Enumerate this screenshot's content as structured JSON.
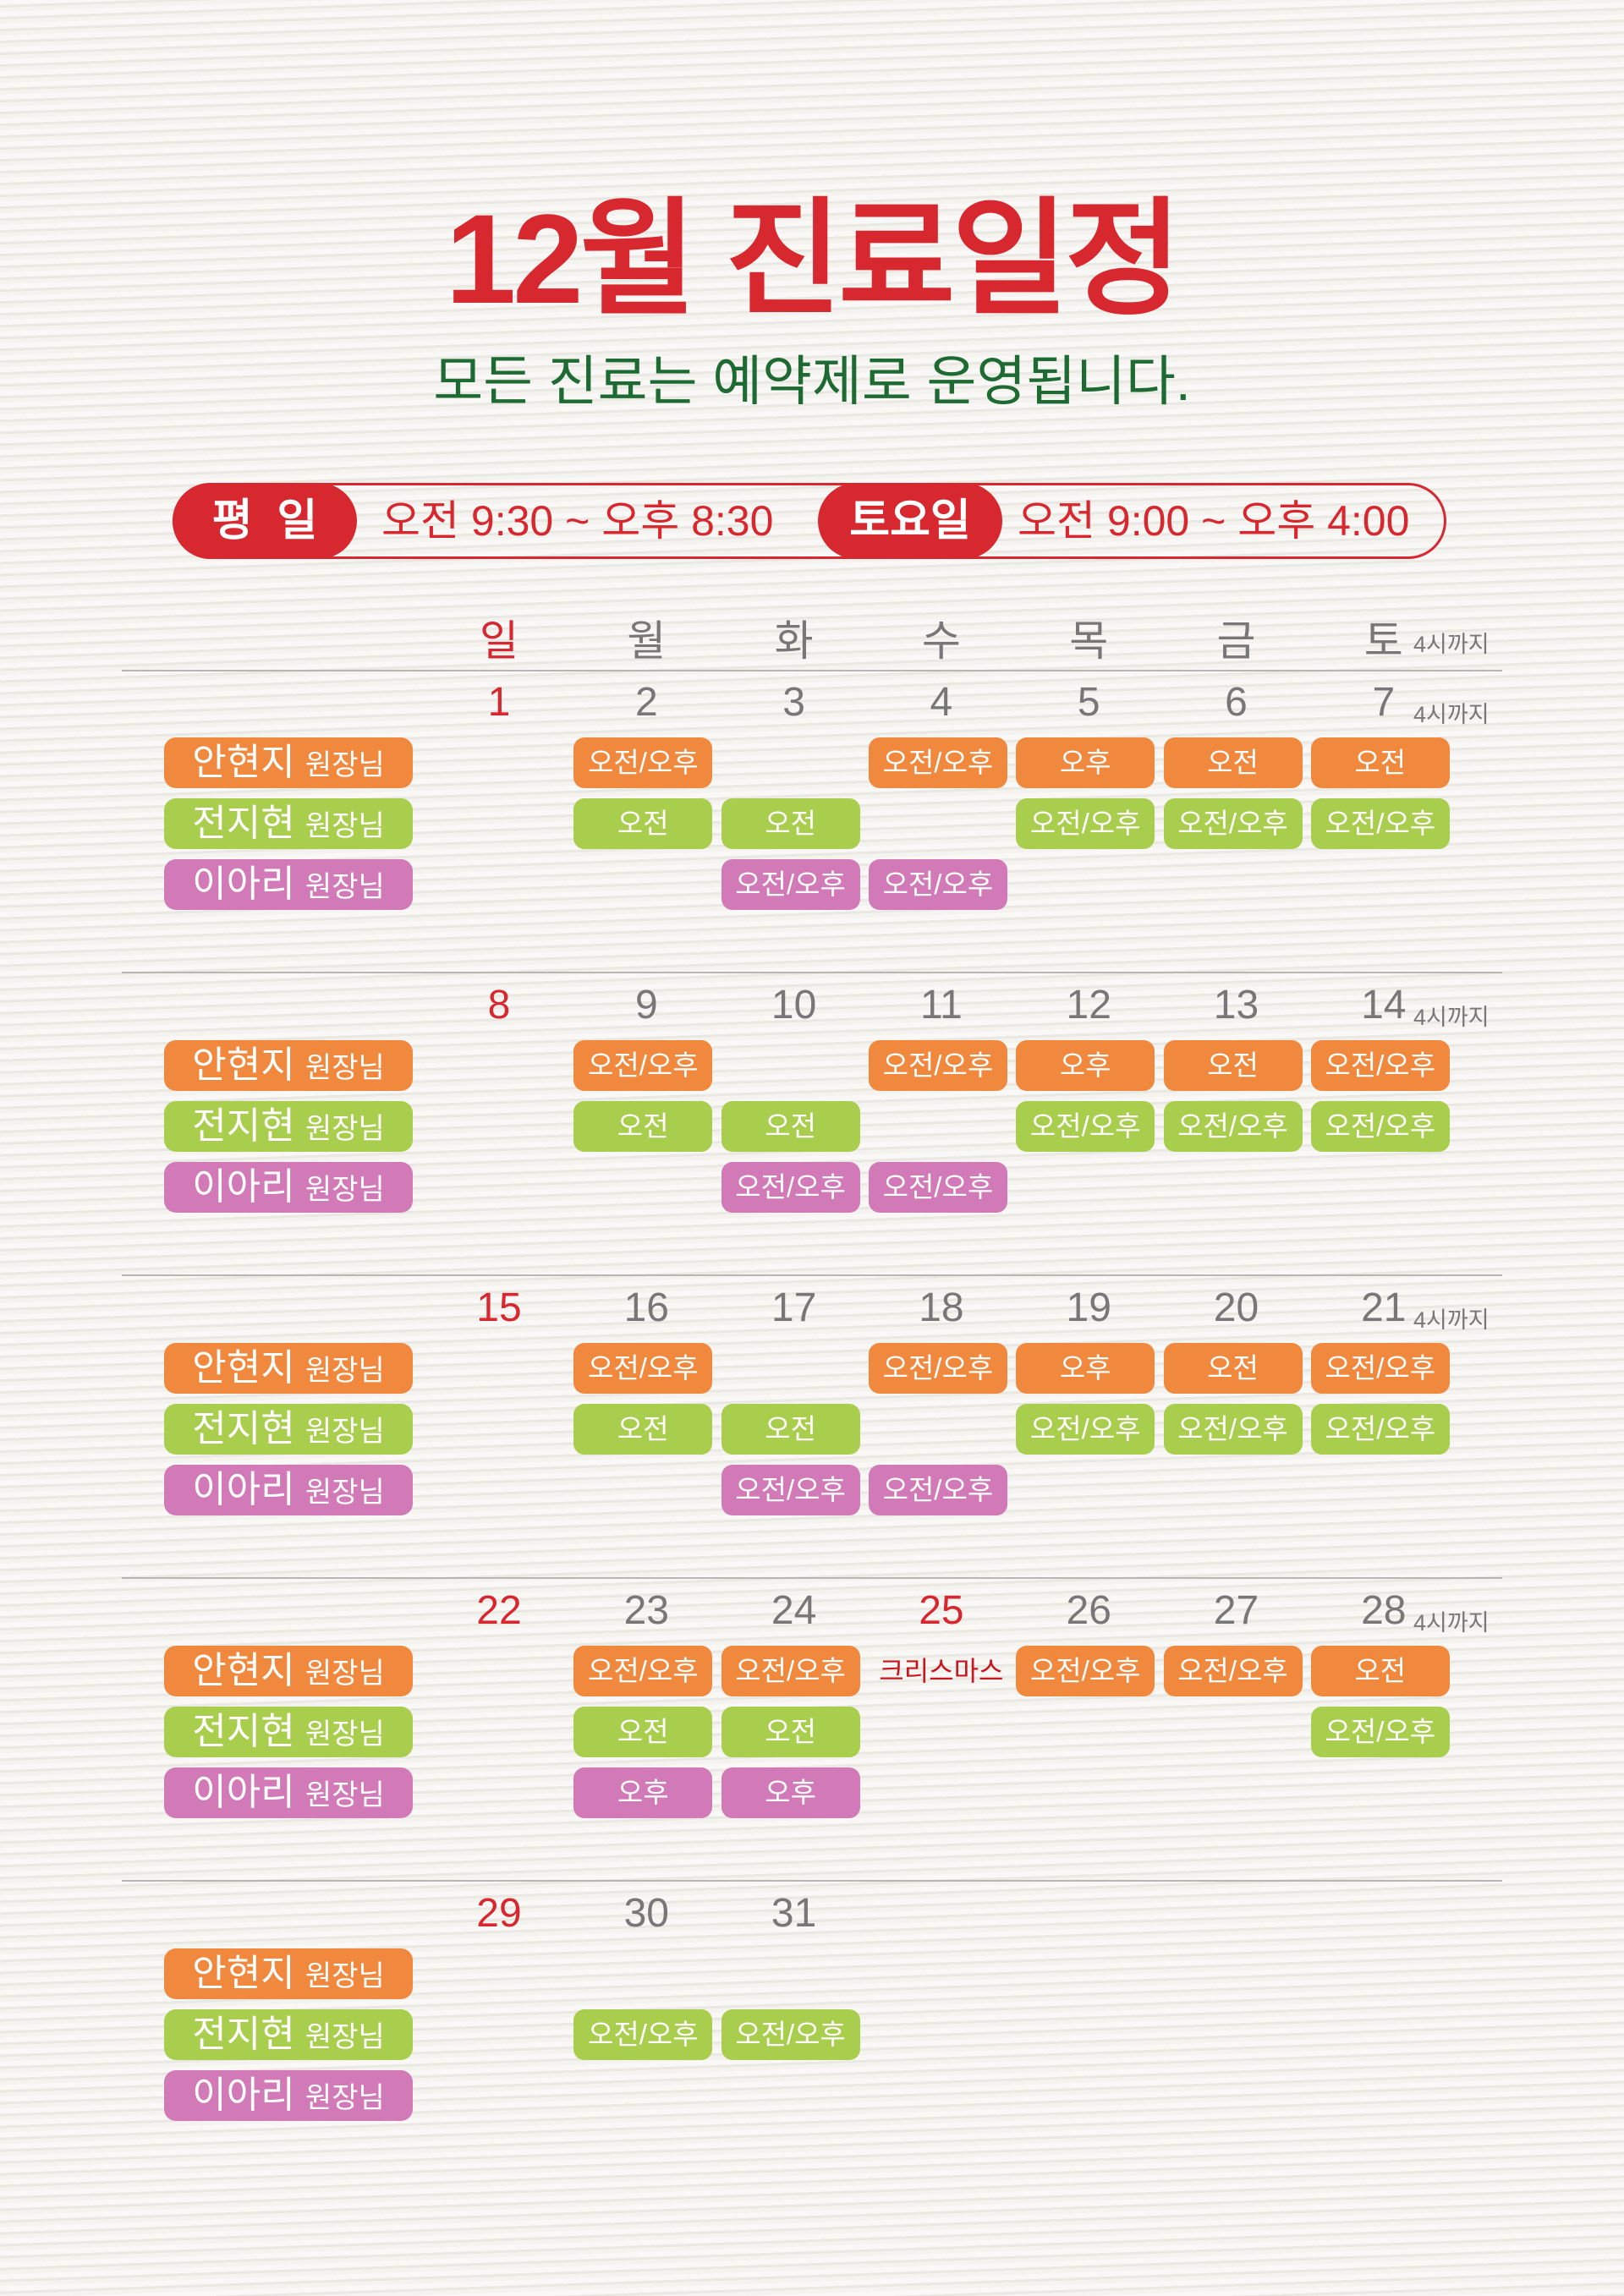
{
  "title": "12월 진료일정",
  "subtitle": "모든 진료는 예약제로 운영됩니다.",
  "hours": [
    {
      "label": "평  일",
      "time": "오전 9:30 ~ 오후 8:30"
    },
    {
      "label": "토요일",
      "time": "오전 9:00 ~ 오후 4:00"
    }
  ],
  "weekdays": [
    "일",
    "월",
    "화",
    "수",
    "목",
    "금",
    "토"
  ],
  "saturday_note": "4시까지",
  "doctors": [
    {
      "name": "안현지",
      "title": "원장님",
      "color": "#f0883e"
    },
    {
      "name": "전지현",
      "title": "원장님",
      "color": "#a9cd4c"
    },
    {
      "name": "이아리",
      "title": "원장님",
      "color": "#d27ab8"
    }
  ],
  "weeks": [
    {
      "dates": [
        1,
        2,
        3,
        4,
        5,
        6,
        7
      ],
      "schedule": [
        [
          null,
          "오전/오후",
          null,
          "오전/오후",
          "오후",
          "오전",
          "오전"
        ],
        [
          null,
          "오전",
          "오전",
          null,
          "오전/오후",
          "오전/오후",
          "오전/오후"
        ],
        [
          null,
          null,
          "오전/오후",
          "오전/오후",
          null,
          null,
          null
        ]
      ]
    },
    {
      "dates": [
        8,
        9,
        10,
        11,
        12,
        13,
        14
      ],
      "schedule": [
        [
          null,
          "오전/오후",
          null,
          "오전/오후",
          "오후",
          "오전",
          "오전/오후"
        ],
        [
          null,
          "오전",
          "오전",
          null,
          "오전/오후",
          "오전/오후",
          "오전/오후"
        ],
        [
          null,
          null,
          "오전/오후",
          "오전/오후",
          null,
          null,
          null
        ]
      ]
    },
    {
      "dates": [
        15,
        16,
        17,
        18,
        19,
        20,
        21
      ],
      "schedule": [
        [
          null,
          "오전/오후",
          null,
          "오전/오후",
          "오후",
          "오전",
          "오전/오후"
        ],
        [
          null,
          "오전",
          "오전",
          null,
          "오전/오후",
          "오전/오후",
          "오전/오후"
        ],
        [
          null,
          null,
          "오전/오후",
          "오전/오후",
          null,
          null,
          null
        ]
      ]
    },
    {
      "dates": [
        22,
        23,
        24,
        25,
        26,
        27,
        28
      ],
      "schedule": [
        [
          null,
          "오전/오후",
          "오전/오후",
          {
            "text": "크리스마스",
            "holiday": true
          },
          "오전/오후",
          "오전/오후",
          "오전"
        ],
        [
          null,
          "오전",
          "오전",
          null,
          null,
          null,
          "오전/오후"
        ],
        [
          null,
          "오후",
          "오후",
          null,
          null,
          null,
          null
        ]
      ]
    },
    {
      "dates": [
        29,
        30,
        31,
        null,
        null,
        null,
        null
      ],
      "schedule": [
        [
          null,
          null,
          null,
          null,
          null,
          null,
          null
        ],
        [
          null,
          "오전/오후",
          "오전/오후",
          null,
          null,
          null,
          null
        ],
        [
          null,
          null,
          null,
          null,
          null,
          null,
          null
        ]
      ]
    }
  ]
}
